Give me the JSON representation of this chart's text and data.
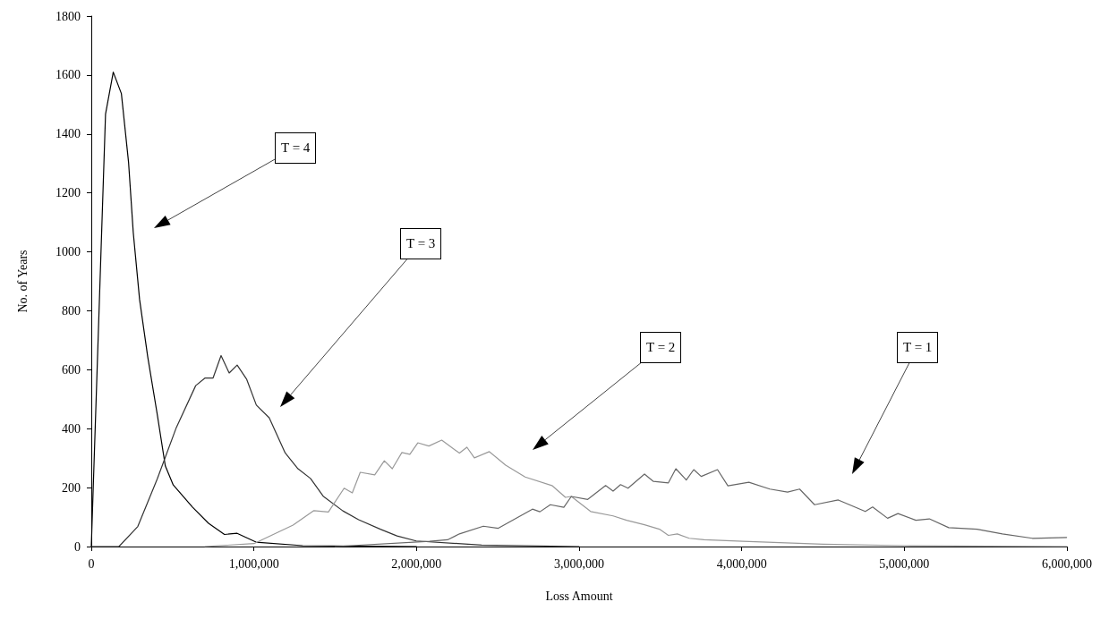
{
  "chart_data": {
    "type": "line",
    "xlabel": "Loss Amount",
    "ylabel": "No. of Years",
    "xlim": [
      0,
      6000000
    ],
    "ylim": [
      0,
      1800
    ],
    "xticks": [
      0,
      {
        "value": 1000000,
        "label": "1,000,000"
      },
      {
        "value": 2000000,
        "label": "2,000,000"
      },
      {
        "value": 3000000,
        "label": "3,000,000"
      },
      {
        "value": 4000000,
        "label": "4,000,000"
      },
      {
        "value": 5000000,
        "label": "5,000,000"
      },
      {
        "value": 6000000,
        "label": "6,000,000"
      }
    ],
    "yticks": [
      0,
      200,
      400,
      600,
      800,
      1000,
      1200,
      1400,
      1600,
      1800
    ],
    "grid": false,
    "marker": "none",
    "line_style": "solid",
    "series": [
      {
        "color": "#000000",
        "x": [
          0,
          87500,
          135000,
          185000,
          229000,
          258000,
          297000,
          347000,
          406000,
          455000,
          504000,
          622000,
          721000,
          819000,
          897000,
          1013000,
          1300000,
          2000000
        ],
        "values": [
          0,
          1467,
          1610,
          1537,
          1305,
          1066,
          838,
          644,
          447,
          274,
          209,
          134,
          79,
          41,
          45,
          15,
          3,
          0
        ]
      },
      {
        "color": "#333333",
        "x": [
          0,
          170000,
          286000,
          406000,
          523000,
          642000,
          700000,
          749000,
          798000,
          848000,
          897000,
          956000,
          1015000,
          1094000,
          1192000,
          1271000,
          1348000,
          1426000,
          1547000,
          1644000,
          1781000,
          1880000,
          1998000,
          2400000,
          3000000
        ],
        "values": [
          0,
          0,
          68,
          230,
          404,
          546,
          572,
          572,
          648,
          589,
          616,
          567,
          480,
          437,
          318,
          264,
          231,
          171,
          121,
          91,
          58,
          36,
          19,
          5,
          0
        ]
      },
      {
        "color": "#999999",
        "x": [
          700000,
          1000000,
          1241000,
          1369000,
          1458000,
          1555000,
          1605000,
          1654000,
          1743000,
          1802000,
          1851000,
          1910000,
          1959000,
          2008000,
          2076000,
          2155000,
          2264000,
          2310000,
          2356000,
          2448000,
          2548000,
          2668000,
          2833000,
          2916000,
          2952000,
          3071000,
          3209000,
          3292000,
          3402000,
          3494000,
          3549000,
          3604000,
          3677000,
          3769000,
          4007000,
          4500000,
          5000000,
          6000000
        ],
        "values": [
          0,
          10,
          73,
          122,
          117,
          198,
          182,
          252,
          243,
          291,
          264,
          319,
          313,
          352,
          341,
          361,
          317,
          337,
          301,
          322,
          276,
          236,
          207,
          167,
          170,
          119,
          104,
          89,
          74,
          59,
          38,
          43,
          28,
          23,
          18,
          8,
          3,
          0
        ]
      },
      {
        "color": "#666666",
        "x": [
          1500000,
          2081000,
          2191000,
          2264000,
          2411000,
          2503000,
          2713000,
          2759000,
          2823000,
          2906000,
          2952000,
          3053000,
          3163000,
          3209000,
          3255000,
          3301000,
          3402000,
          3457000,
          3549000,
          3595000,
          3659000,
          3705000,
          3751000,
          3851000,
          3915000,
          4044000,
          4173000,
          4282000,
          4356000,
          4448000,
          4594000,
          4760000,
          4805000,
          4897000,
          4961000,
          5071000,
          5154000,
          5273000,
          5447000,
          5603000,
          5787000,
          5998000
        ],
        "values": [
          0,
          18,
          23,
          43,
          69,
          62,
          127,
          118,
          142,
          133,
          170,
          160,
          207,
          188,
          210,
          198,
          246,
          221,
          216,
          264,
          226,
          261,
          238,
          261,
          206,
          218,
          195,
          185,
          195,
          142,
          158,
          119,
          134,
          96,
          112,
          89,
          94,
          64,
          59,
          43,
          28,
          31
        ]
      }
    ],
    "annotations": [
      "T = 4",
      "T = 3",
      "T = 2",
      "T = 1"
    ]
  }
}
